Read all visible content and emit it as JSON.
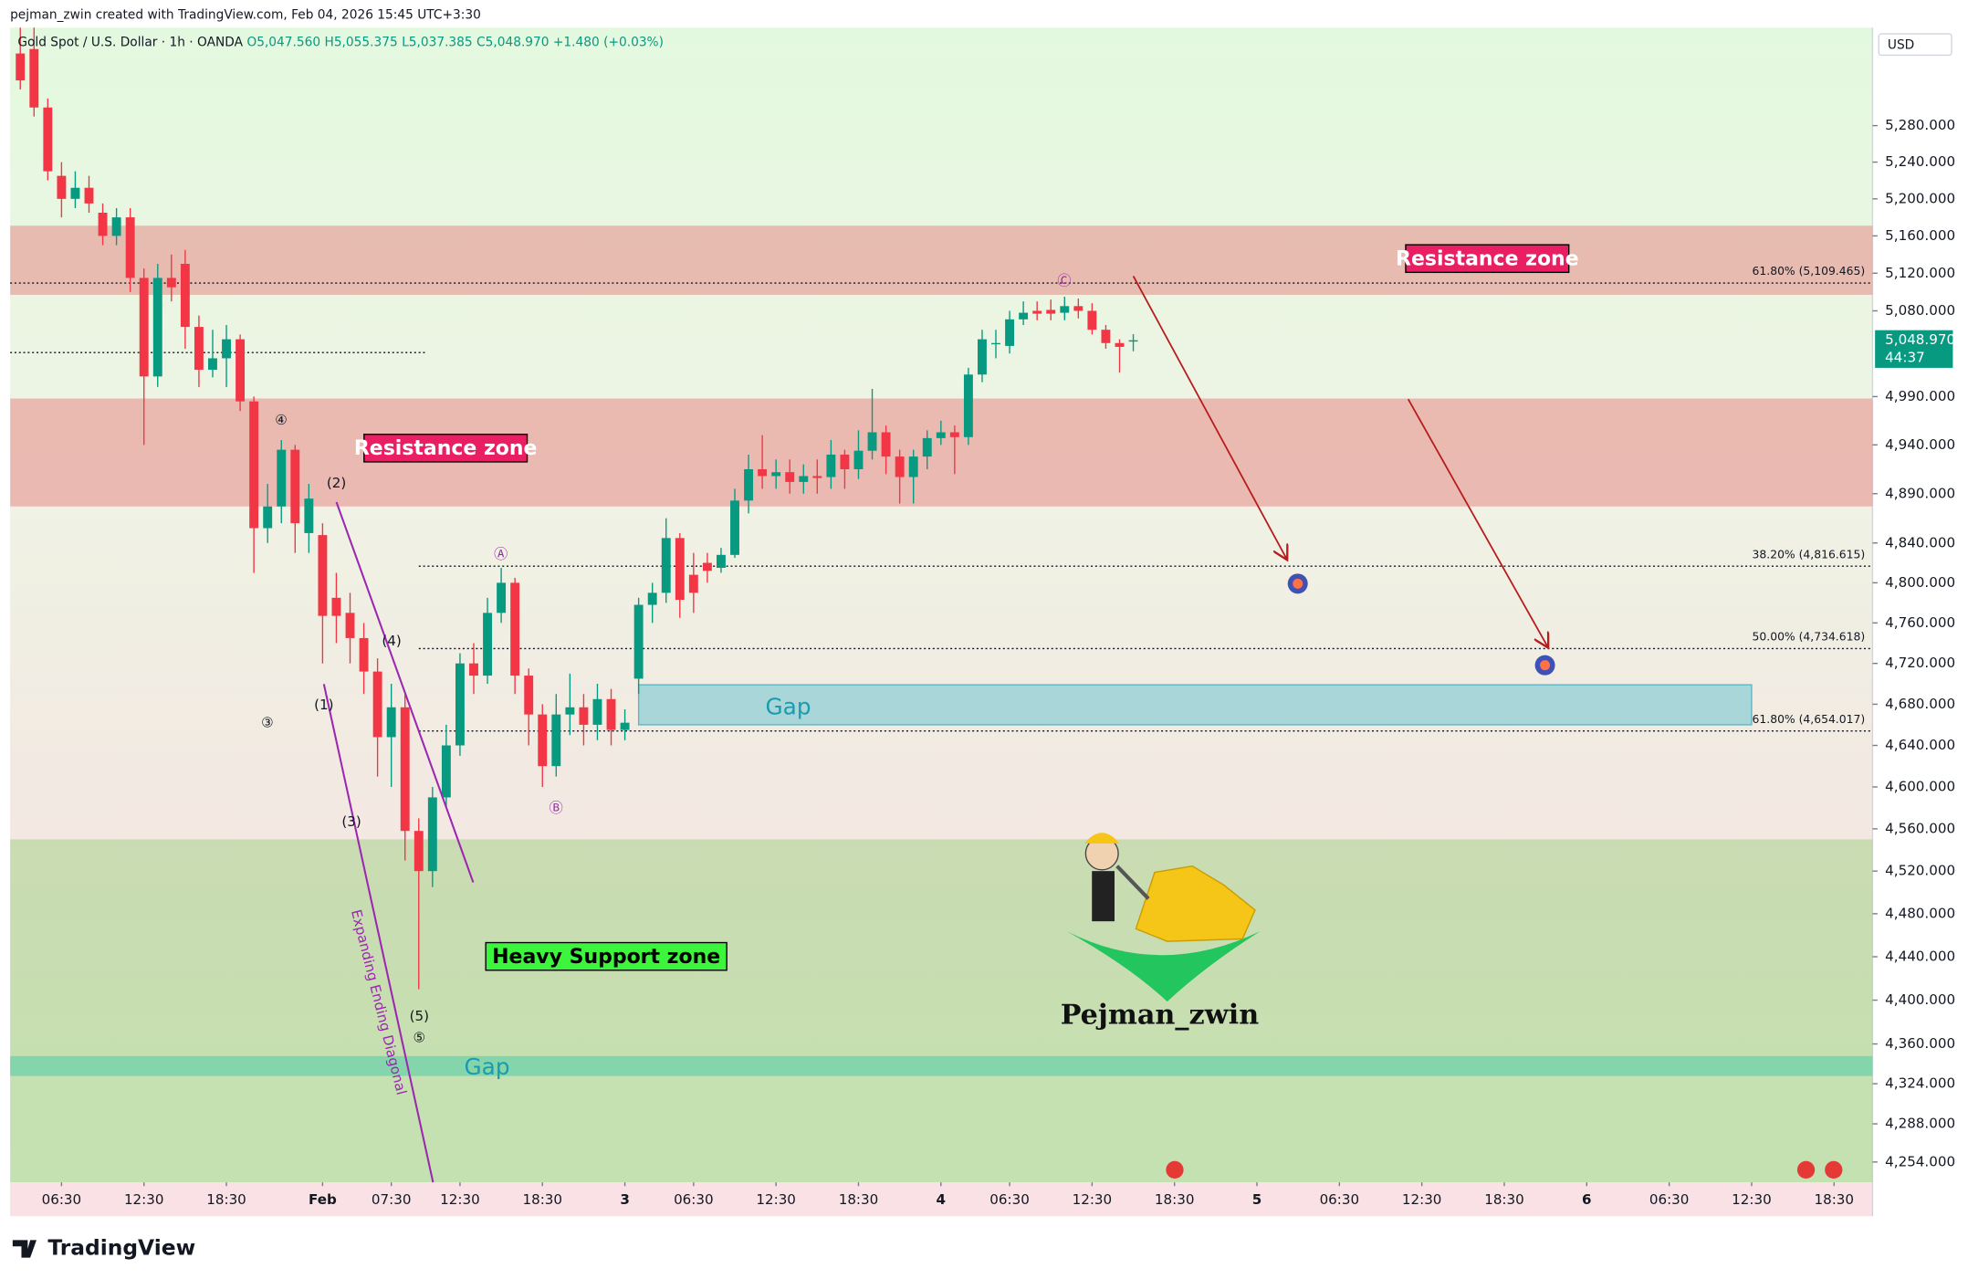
{
  "header": {
    "credit": "pejman_zwin created with TradingView.com, Feb 04, 2026 15:45 UTC+3:30"
  },
  "chart_data": {
    "type": "candlestick",
    "title": "Gold Spot / U.S. Dollar · 1h · OANDA",
    "legend_values": [
      {
        "value": 5047.56,
        "label": "O5,047.560"
      },
      {
        "value": 5055.375,
        "label": "H5,055.375"
      },
      {
        "value": 5037.385,
        "label": "L5,037.385"
      },
      {
        "value": 5048.97,
        "label": "C5,048.970"
      },
      {
        "value": 1.48,
        "label": "+1.480"
      },
      {
        "value": 0.03,
        "label": "(+0.03%)"
      }
    ],
    "currency": "USD",
    "x": [
      -3,
      -2,
      -1,
      0,
      1,
      2,
      3,
      4,
      5,
      6,
      7,
      8,
      9,
      10,
      11,
      12,
      13,
      14,
      15,
      16,
      17,
      18,
      19,
      20,
      21,
      22,
      23,
      24,
      25,
      26,
      27,
      28,
      29,
      30,
      31,
      32,
      33,
      34,
      35,
      36,
      37,
      38,
      39,
      40,
      41,
      42,
      43,
      44,
      45,
      46,
      47,
      48,
      49,
      50,
      51,
      52,
      53,
      54,
      55,
      56,
      57,
      58,
      59,
      60,
      61,
      62,
      63,
      64,
      65,
      66,
      67,
      68,
      69,
      70,
      71,
      72,
      73,
      74,
      75,
      76,
      77,
      78
    ],
    "open": [
      5360,
      5365,
      5300,
      5225,
      5200,
      5212,
      5185,
      5160,
      5180,
      5115,
      5011,
      5115,
      5130,
      5063,
      5018,
      5030,
      5050,
      4985,
      4855,
      4877,
      4935,
      4850,
      4848,
      4785,
      4770,
      4745,
      4712,
      4648,
      4677,
      4558,
      4520,
      4590,
      4640,
      4720,
      4708,
      4770,
      4800,
      4708,
      4670,
      4620,
      4670,
      4677,
      4660,
      4685,
      4655,
      4705,
      4778,
      4790,
      4845,
      4808,
      4820,
      4815,
      4828,
      4883,
      4915,
      4908,
      4912,
      4902,
      4908,
      4907,
      4930,
      4915,
      4934,
      4953,
      4928,
      4907,
      4928,
      4947,
      4953,
      4948,
      5013,
      5045,
      5043,
      5071,
      5080,
      5081,
      5078,
      5085,
      5080,
      5060,
      5046,
      5047.56
    ],
    "high": [
      5400,
      5390,
      5310,
      5240,
      5230,
      5225,
      5195,
      5190,
      5190,
      5125,
      5130,
      5140,
      5145,
      5075,
      5060,
      5065,
      5055,
      4990,
      4900,
      4945,
      4940,
      4900,
      4860,
      4810,
      4790,
      4760,
      4725,
      4700,
      4690,
      4570,
      4600,
      4660,
      4730,
      4740,
      4785,
      4815,
      4805,
      4715,
      4680,
      4690,
      4710,
      4690,
      4700,
      4695,
      4675,
      4785,
      4800,
      4865,
      4850,
      4830,
      4830,
      4835,
      4895,
      4930,
      4950,
      4925,
      4925,
      4920,
      4925,
      4945,
      4935,
      4955,
      4998,
      4960,
      4935,
      4935,
      4955,
      4965,
      4960,
      5020,
      5060,
      5060,
      5080,
      5090,
      5090,
      5092,
      5095,
      5093,
      5088,
      5065,
      5050,
      5055.375
    ],
    "low": [
      5320,
      5290,
      5220,
      5180,
      5190,
      5185,
      5150,
      5150,
      5100,
      4940,
      5000,
      5090,
      5040,
      5000,
      5010,
      5000,
      4975,
      4810,
      4840,
      4860,
      4830,
      4830,
      4720,
      4740,
      4720,
      4690,
      4610,
      4600,
      4530,
      4410,
      4505,
      4580,
      4630,
      4690,
      4700,
      4760,
      4690,
      4640,
      4600,
      4610,
      4650,
      4640,
      4645,
      4640,
      4645,
      4690,
      4760,
      4780,
      4765,
      4770,
      4800,
      4810,
      4825,
      4870,
      4895,
      4895,
      4890,
      4890,
      4890,
      4895,
      4895,
      4905,
      4925,
      4910,
      4880,
      4880,
      4915,
      4940,
      4910,
      4940,
      5005,
      5030,
      5035,
      5065,
      5070,
      5070,
      5070,
      5072,
      5055,
      5040,
      5015,
      5037.385
    ],
    "close": [
      5330,
      5300,
      5230,
      5200,
      5212,
      5195,
      5160,
      5180,
      5115,
      5011,
      5115,
      5105,
      5063,
      5018,
      5030,
      5050,
      4985,
      4855,
      4877,
      4935,
      4860,
      4885,
      4767,
      4767,
      4745,
      4712,
      4648,
      4677,
      4558,
      4520,
      4590,
      4640,
      4720,
      4708,
      4770,
      4800,
      4708,
      4670,
      4620,
      4670,
      4677,
      4660,
      4685,
      4655,
      4662,
      4778,
      4790,
      4845,
      4783,
      4790,
      4812,
      4828,
      4883,
      4915,
      4908,
      4912,
      4902,
      4908,
      4906,
      4930,
      4915,
      4934,
      4953,
      4928,
      4907,
      4928,
      4947,
      4953,
      4948,
      5013,
      5050,
      5046,
      5071,
      5078,
      5077,
      5077,
      5085,
      5080,
      5060,
      5046,
      5042,
      5048.97
    ],
    "up_color": "#089981",
    "down_color": "#f23645",
    "xlim": [
      -3.74,
      131.8
    ],
    "xticks": [
      {
        "value": 0,
        "label": "06:30"
      },
      {
        "value": 6,
        "label": "12:30"
      },
      {
        "value": 12,
        "label": "18:30"
      },
      {
        "value": 19,
        "label": "Feb"
      },
      {
        "value": 24,
        "label": "07:30"
      },
      {
        "value": 29,
        "label": "12:30"
      },
      {
        "value": 35,
        "label": "18:30"
      },
      {
        "value": 41,
        "label": "3"
      },
      {
        "value": 46,
        "label": "06:30"
      },
      {
        "value": 52,
        "label": "12:30"
      },
      {
        "value": 58,
        "label": "18:30"
      },
      {
        "value": 64,
        "label": "4"
      },
      {
        "value": 69,
        "label": "06:30"
      },
      {
        "value": 75,
        "label": "12:30"
      },
      {
        "value": 81,
        "label": "18:30"
      },
      {
        "value": 87,
        "label": "5"
      },
      {
        "value": 93,
        "label": "06:30"
      },
      {
        "value": 99,
        "label": "12:30"
      },
      {
        "value": 105,
        "label": "18:30"
      },
      {
        "value": 111,
        "label": "6"
      },
      {
        "value": 117,
        "label": "06:30"
      },
      {
        "value": 123,
        "label": "12:30"
      },
      {
        "value": 129,
        "label": "18:30"
      }
    ],
    "ylim": [
      4236,
      5389
    ],
    "log_scale": true,
    "yticks": [
      {
        "value": 5280,
        "label": "5,280.000"
      },
      {
        "value": 5240,
        "label": "5,240.000"
      },
      {
        "value": 5200,
        "label": "5,200.000"
      },
      {
        "value": 5160,
        "label": "5,160.000"
      },
      {
        "value": 5120,
        "label": "5,120.000"
      },
      {
        "value": 5080,
        "label": "5,080.000"
      },
      {
        "value": 4990,
        "label": "4,990.000"
      },
      {
        "value": 4940,
        "label": "4,940.000"
      },
      {
        "value": 4890,
        "label": "4,890.000"
      },
      {
        "value": 4840,
        "label": "4,840.000"
      },
      {
        "value": 4800,
        "label": "4,800.000"
      },
      {
        "value": 4760,
        "label": "4,760.000"
      },
      {
        "value": 4720,
        "label": "4,720.000"
      },
      {
        "value": 4680,
        "label": "4,680.000"
      },
      {
        "value": 4640,
        "label": "4,640.000"
      },
      {
        "value": 4600,
        "label": "4,600.000"
      },
      {
        "value": 4560,
        "label": "4,560.000"
      },
      {
        "value": 4520,
        "label": "4,520.000"
      },
      {
        "value": 4480,
        "label": "4,480.000"
      },
      {
        "value": 4440,
        "label": "4,440.000"
      },
      {
        "value": 4400,
        "label": "4,400.000"
      },
      {
        "value": 4360,
        "label": "4,360.000"
      },
      {
        "value": 4324,
        "label": "4,324.000"
      },
      {
        "value": 4288,
        "label": "4,288.000"
      },
      {
        "value": 4254,
        "label": "4,254.000"
      }
    ],
    "last_price": {
      "value": 5048.97,
      "label": "5,048.970"
    },
    "countdown": "44:37",
    "zones": [
      {
        "label": "Resistance zone",
        "low": 5097,
        "high": 5171,
        "color": "rgba(229,115,115,0.45)"
      },
      {
        "label": "Resistance zone",
        "low": 4877,
        "high": 4988,
        "color": "rgba(229,115,115,0.45)"
      },
      {
        "label": "Heavy Support zone",
        "low": 4236,
        "high": 4550,
        "color": "rgba(150,205,120,0.45)"
      },
      {
        "label": "Gap",
        "low": 4660,
        "high": 4699,
        "start_x": 42,
        "end_x": 123,
        "color": "rgba(120,200,210,0.6)"
      },
      {
        "label": "Gap",
        "low": 4331,
        "high": 4349,
        "color": "rgba(110,210,170,0.75)"
      }
    ],
    "fib_levels": [
      {
        "value": 5109.465,
        "label": "61.80% (5,109.465)",
        "start_x": -3.74
      },
      {
        "value": 4816.615,
        "label": "38.20% (4,816.615)",
        "start_x": 26
      },
      {
        "value": 4734.618,
        "label": "50.00% (4,734.618)",
        "start_x": 26
      },
      {
        "value": 4654.017,
        "label": "61.80% (4,654.017)",
        "start_x": 26
      }
    ],
    "dotted_level": {
      "value": 5036,
      "end_x": 26.6
    },
    "wave_labels": [
      "④",
      "(2)",
      "(4)",
      "③",
      "(1)",
      "(3)",
      "(5)",
      "⑤",
      "Ⓐ",
      "Ⓑ",
      "Ⓒ"
    ],
    "pattern_label": "Expanding Ending Diagonal",
    "watermark": "Pejman_zwin"
  },
  "footer": {
    "brand": "TradingView"
  }
}
